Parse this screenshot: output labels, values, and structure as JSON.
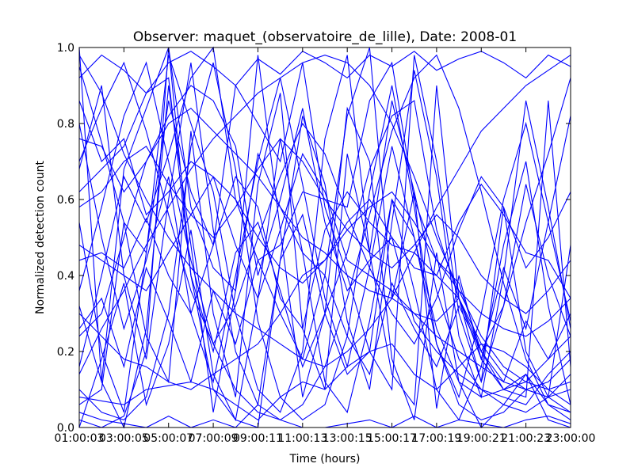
{
  "chart_data": {
    "type": "line",
    "title": "Observer: maquet_(observatoire_de_lille), Date: 2008-01",
    "xlabel": "Time (hours)",
    "ylabel": "Normalized detection count",
    "x": [
      "01:00:00",
      "02:00:00",
      "03:00:00",
      "04:00:00",
      "05:00:00",
      "06:00:00",
      "07:00:00",
      "08:00:00",
      "09:00:00",
      "10:00:00",
      "11:00:00",
      "12:00:00",
      "13:00:00",
      "14:00:00",
      "15:00:00",
      "16:00:00",
      "17:00:00",
      "18:00:00",
      "19:00:00",
      "20:00:00",
      "21:00:00",
      "22:00:00",
      "23:00:00"
    ],
    "xticks": [
      "01:00:03",
      "03:00:05",
      "05:00:07",
      "07:00:09",
      "09:00:11",
      "11:00:13",
      "13:00:15",
      "15:00:17",
      "17:00:19",
      "19:00:21",
      "21:00:23",
      "23:00:00"
    ],
    "ylim": [
      0.0,
      1.0
    ],
    "yticks": [
      "0.0",
      "0.2",
      "0.4",
      "0.6",
      "0.8",
      "1.0"
    ],
    "grid": false,
    "line_color": "#0000ff",
    "series": [
      {
        "values": [
          1.0,
          0.12,
          0.68,
          0.84,
          1.0,
          0.58,
          0.42,
          0.36,
          0.72,
          0.58,
          0.46,
          0.4,
          0.82,
          1.0,
          0.34,
          0.62,
          0.05,
          0.4,
          0.18,
          0.1,
          0.08,
          0.86,
          0.16
        ]
      },
      {
        "values": [
          0.24,
          0.3,
          0.5,
          0.7,
          0.82,
          0.9,
          0.86,
          0.74,
          0.4,
          0.6,
          0.84,
          0.54,
          0.36,
          0.44,
          0.5,
          0.28,
          0.2,
          0.14,
          0.1,
          0.08,
          0.06,
          0.14,
          0.2
        ]
      },
      {
        "values": [
          0.95,
          0.75,
          0.54,
          0.46,
          0.98,
          0.8,
          0.62,
          0.3,
          0.1,
          0.04,
          0.2,
          0.76,
          0.98,
          0.46,
          0.86,
          0.62,
          0.36,
          0.18,
          0.1,
          0.06,
          0.04,
          0.08,
          0.14
        ]
      },
      {
        "values": [
          0.02,
          0.0,
          0.03,
          0.2,
          1.0,
          0.4,
          0.1,
          0.02,
          0.0,
          0.44,
          0.56,
          0.3,
          0.14,
          0.2,
          0.6,
          0.5,
          0.26,
          0.12,
          0.08,
          0.1,
          0.14,
          0.06,
          0.04
        ]
      },
      {
        "values": [
          0.62,
          0.68,
          0.74,
          0.88,
          0.92,
          0.4,
          0.2,
          0.46,
          0.54,
          0.36,
          0.16,
          0.3,
          0.46,
          0.68,
          0.82,
          0.86,
          0.52,
          0.34,
          0.18,
          0.42,
          0.26,
          0.54,
          0.82
        ]
      },
      {
        "values": [
          0.16,
          0.4,
          0.66,
          0.54,
          0.72,
          0.92,
          1.0,
          0.6,
          0.44,
          0.48,
          0.62,
          0.6,
          0.58,
          0.86,
          0.96,
          0.6,
          0.44,
          0.38,
          0.2,
          0.1,
          0.12,
          0.18,
          0.3
        ]
      },
      {
        "values": [
          0.08,
          0.07,
          0.06,
          0.1,
          0.11,
          0.12,
          0.1,
          0.06,
          0.02,
          0.08,
          0.12,
          0.1,
          0.16,
          0.2,
          0.22,
          0.14,
          0.1,
          0.16,
          0.22,
          0.2,
          0.16,
          0.1,
          0.06
        ]
      },
      {
        "values": [
          0.44,
          0.46,
          0.42,
          0.55,
          0.4,
          0.3,
          0.48,
          0.66,
          0.58,
          0.34,
          0.26,
          0.52,
          0.62,
          0.54,
          0.48,
          0.46,
          0.4,
          0.54,
          0.64,
          0.56,
          0.46,
          0.44,
          0.34
        ]
      },
      {
        "values": [
          0.86,
          0.7,
          0.76,
          0.56,
          0.62,
          0.7,
          0.66,
          0.48,
          0.34,
          0.52,
          0.72,
          0.62,
          0.44,
          0.4,
          0.36,
          0.3,
          0.28,
          0.34,
          0.2,
          0.32,
          0.54,
          0.72,
          0.92
        ]
      },
      {
        "values": [
          0.04,
          0.02,
          0.01,
          0.0,
          0.03,
          0.0,
          0.02,
          0.0,
          0.06,
          0.02,
          0.0,
          0.0,
          0.01,
          0.02,
          0.0,
          0.03,
          0.0,
          0.02,
          0.01,
          0.0,
          0.02,
          0.03,
          0.01
        ]
      },
      {
        "values": [
          0.3,
          0.24,
          0.18,
          0.16,
          0.12,
          0.1,
          0.14,
          0.18,
          0.22,
          0.3,
          0.4,
          0.44,
          0.54,
          0.6,
          0.5,
          0.42,
          0.4,
          0.34,
          0.22,
          0.14,
          0.1,
          0.12,
          0.18
        ]
      },
      {
        "values": [
          0.76,
          0.74,
          0.62,
          0.7,
          0.8,
          0.84,
          0.78,
          0.72,
          0.66,
          0.58,
          0.5,
          0.46,
          0.4,
          0.36,
          0.34,
          0.3,
          0.24,
          0.2,
          0.16,
          0.12,
          0.1,
          0.08,
          0.1
        ]
      },
      {
        "values": [
          0.54,
          0.2,
          0.04,
          0.46,
          0.86,
          0.62,
          0.48,
          0.9,
          0.8,
          0.7,
          0.96,
          0.58,
          0.4,
          0.2,
          0.1,
          0.98,
          0.7,
          0.3,
          0.12,
          0.32,
          0.64,
          0.4,
          0.24
        ]
      },
      {
        "values": [
          0.14,
          0.26,
          0.36,
          0.48,
          0.58,
          0.68,
          0.76,
          0.82,
          0.88,
          0.92,
          0.96,
          0.98,
          0.96,
          0.9,
          0.8,
          0.66,
          0.5,
          0.36,
          0.24,
          0.16,
          0.12,
          0.1,
          0.12
        ]
      },
      {
        "values": [
          0.98,
          0.88,
          0.72,
          0.6,
          0.5,
          0.42,
          0.36,
          0.3,
          0.26,
          0.22,
          0.18,
          0.16,
          0.2,
          0.26,
          0.34,
          0.46,
          0.58,
          0.68,
          0.78,
          0.84,
          0.9,
          0.94,
          0.98
        ]
      },
      {
        "values": [
          0.36,
          0.58,
          0.82,
          0.96,
          0.7,
          0.44,
          0.22,
          0.1,
          0.04,
          0.02,
          0.06,
          0.16,
          0.34,
          0.56,
          0.78,
          0.92,
          0.98,
          0.84,
          0.62,
          0.38,
          0.18,
          0.06,
          0.02
        ]
      },
      {
        "values": [
          0.06,
          0.1,
          0.54,
          0.24,
          0.12,
          0.78,
          0.3,
          0.08,
          0.64,
          0.88,
          0.26,
          0.1,
          0.72,
          0.46,
          0.14,
          0.06,
          0.9,
          0.34,
          0.12,
          0.58,
          0.2,
          0.08,
          0.48
        ]
      },
      {
        "values": [
          0.68,
          0.9,
          0.4,
          0.18,
          0.6,
          0.96,
          0.52,
          0.2,
          0.06,
          0.44,
          0.82,
          0.64,
          0.28,
          0.1,
          0.54,
          0.94,
          0.66,
          0.24,
          0.08,
          0.4,
          0.86,
          0.58,
          0.26
        ]
      },
      {
        "values": [
          0.48,
          0.44,
          0.4,
          0.36,
          0.46,
          0.56,
          0.66,
          0.6,
          0.5,
          0.42,
          0.38,
          0.44,
          0.52,
          0.58,
          0.62,
          0.54,
          0.44,
          0.36,
          0.3,
          0.26,
          0.24,
          0.28,
          0.34
        ]
      },
      {
        "values": [
          0.0,
          0.18,
          0.38,
          0.06,
          0.22,
          0.52,
          0.14,
          0.02,
          0.34,
          0.76,
          0.46,
          0.12,
          0.04,
          0.28,
          0.6,
          0.36,
          0.1,
          0.02,
          0.16,
          0.48,
          0.7,
          0.32,
          0.06
        ]
      },
      {
        "values": [
          0.92,
          0.98,
          0.94,
          0.88,
          0.96,
          0.99,
          0.95,
          0.9,
          0.97,
          0.93,
          0.99,
          0.96,
          0.92,
          0.98,
          0.95,
          0.99,
          0.94,
          0.97,
          0.99,
          0.96,
          0.92,
          0.98,
          0.95
        ]
      },
      {
        "values": [
          0.26,
          0.34,
          0.16,
          0.42,
          0.28,
          0.12,
          0.36,
          0.22,
          0.44,
          0.3,
          0.18,
          0.4,
          0.24,
          0.14,
          0.38,
          0.26,
          0.16,
          0.32,
          0.2,
          0.12,
          0.28,
          0.18,
          0.24
        ]
      },
      {
        "values": [
          0.8,
          0.5,
          0.26,
          0.44,
          0.66,
          0.3,
          0.12,
          0.4,
          0.7,
          0.92,
          0.64,
          0.34,
          0.16,
          0.42,
          0.74,
          0.5,
          0.22,
          0.08,
          0.3,
          0.6,
          0.8,
          0.54,
          0.28
        ]
      },
      {
        "values": [
          0.1,
          0.04,
          0.02,
          0.08,
          0.3,
          0.74,
          0.96,
          0.68,
          0.28,
          0.08,
          0.02,
          0.06,
          0.24,
          0.62,
          0.9,
          0.58,
          0.22,
          0.06,
          0.02,
          0.04,
          0.1,
          0.08,
          0.04
        ]
      },
      {
        "values": [
          0.58,
          0.62,
          0.7,
          0.74,
          0.64,
          0.56,
          0.5,
          0.58,
          0.68,
          0.76,
          0.7,
          0.6,
          0.52,
          0.46,
          0.42,
          0.48,
          0.56,
          0.5,
          0.4,
          0.34,
          0.3,
          0.36,
          0.44
        ]
      },
      {
        "values": [
          0.32,
          0.12,
          0.0,
          0.26,
          0.9,
          0.48,
          0.04,
          0.36,
          0.98,
          0.52,
          0.08,
          0.3,
          0.84,
          0.7,
          0.18,
          0.02,
          0.46,
          0.12,
          0.0,
          0.06,
          0.14,
          0.02,
          0.0
        ]
      },
      {
        "values": [
          0.7,
          0.84,
          0.96,
          0.78,
          0.56,
          0.36,
          0.22,
          0.32,
          0.5,
          0.66,
          0.8,
          0.72,
          0.56,
          0.42,
          0.3,
          0.22,
          0.34,
          0.52,
          0.66,
          0.58,
          0.42,
          0.5,
          0.62
        ]
      }
    ]
  }
}
